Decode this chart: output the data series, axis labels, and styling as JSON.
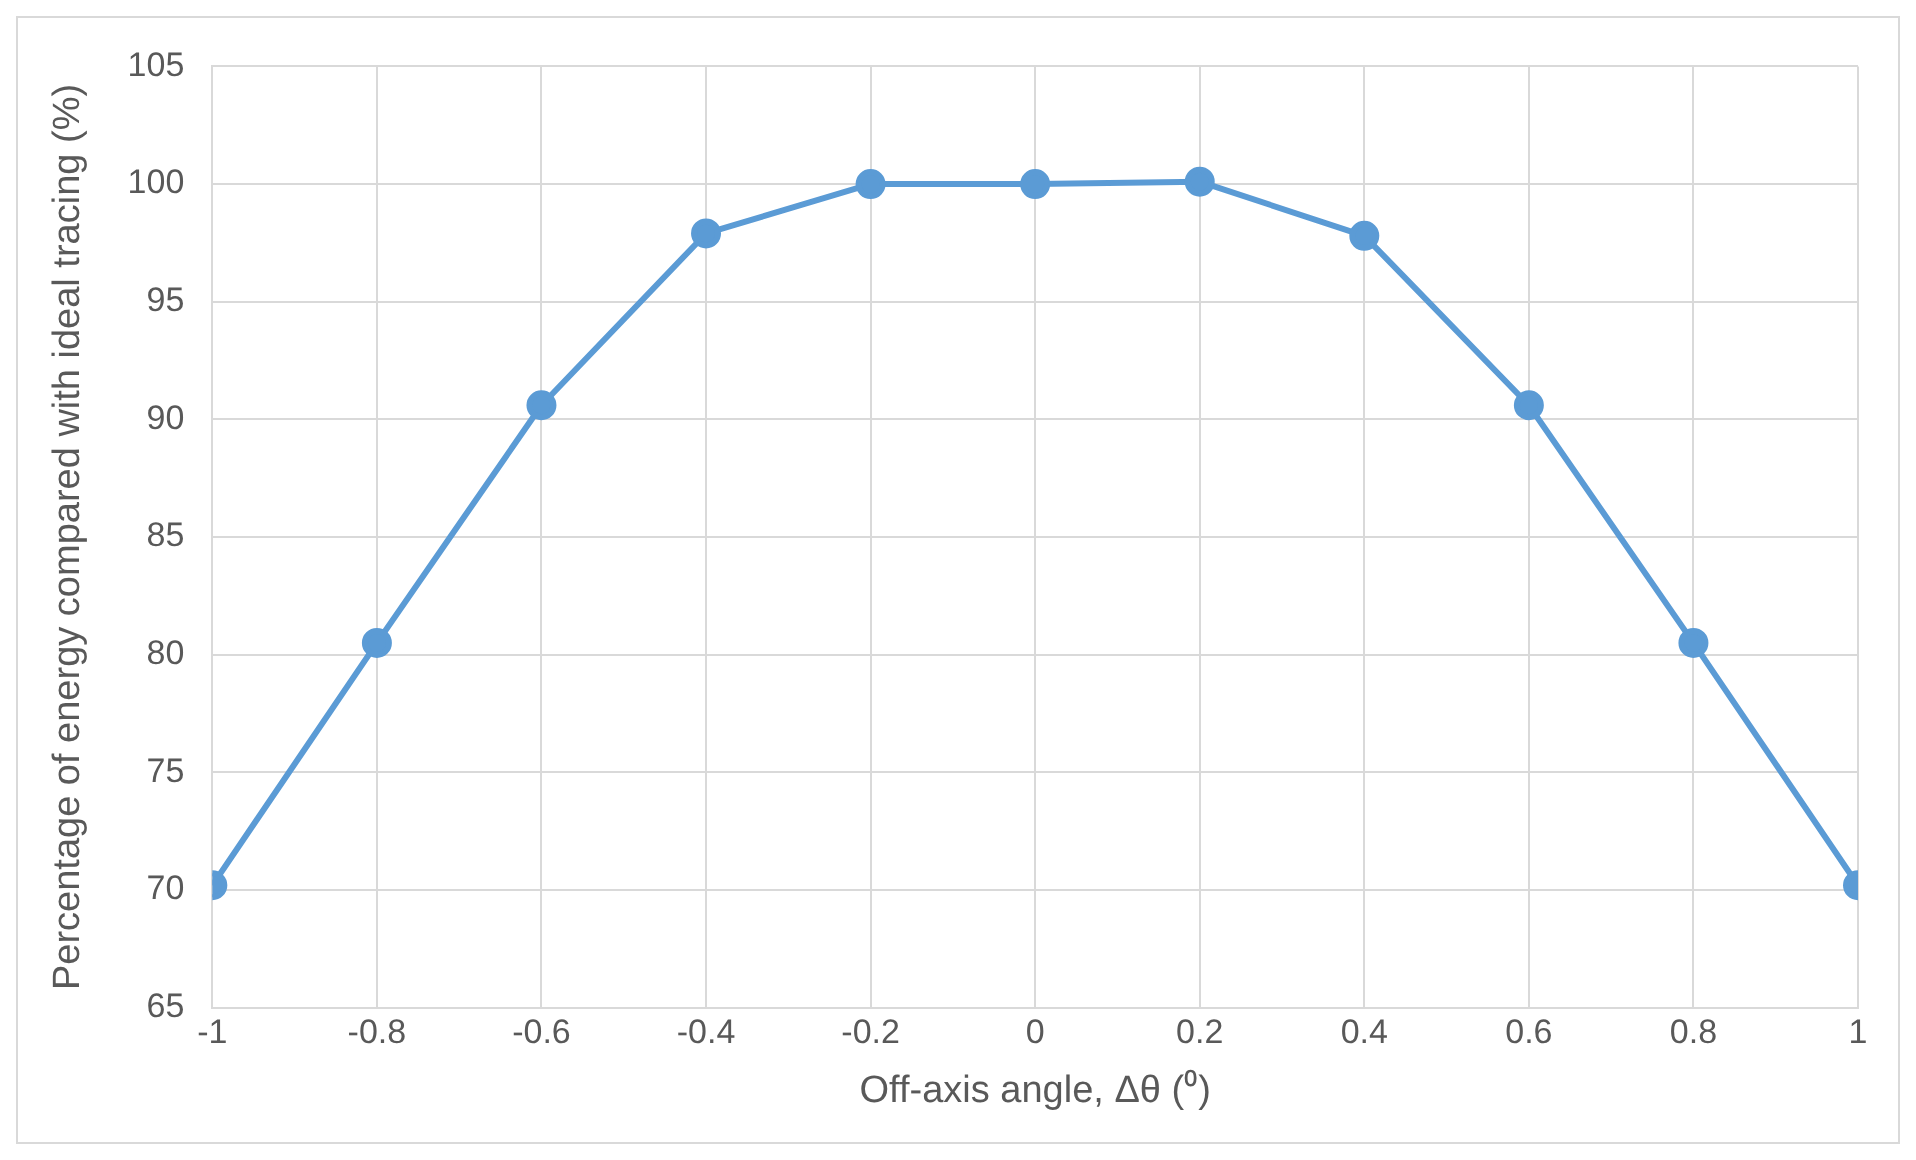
{
  "chart_data": {
    "type": "line",
    "xlabel": "Off-axis angle, Δθ (⁰)",
    "ylabel": "Percentage of energy compared with ideal tracing (%)",
    "x": [
      -1,
      -0.8,
      -0.6,
      -0.4,
      -0.2,
      0,
      0.2,
      0.4,
      0.6,
      0.8,
      1
    ],
    "series": [
      {
        "color": "#5b9bd5",
        "values": [
          70.2,
          80.5,
          90.6,
          97.9,
          100,
          100,
          100.1,
          97.8,
          90.6,
          80.5,
          70.2
        ]
      }
    ],
    "xlim": [
      -1,
      1
    ],
    "xticks": [
      -1,
      -0.8,
      -0.6,
      -0.4,
      -0.2,
      0,
      0.2,
      0.4,
      0.6,
      0.8,
      1
    ],
    "ylim": [
      65,
      105
    ],
    "yticks": [
      65,
      70,
      75,
      80,
      85,
      90,
      95,
      100,
      105
    ],
    "grid": true,
    "legend": false,
    "marker": "circle",
    "line_style": "solid"
  }
}
